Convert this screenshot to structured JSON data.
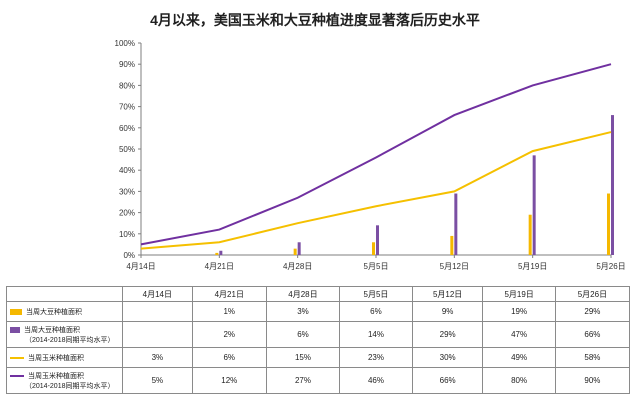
{
  "chart_data": {
    "type": "bar",
    "title": "4月以来，美国玉米和大豆种植进度显著落后历史水平",
    "categories": [
      "4月14日",
      "4月21日",
      "4月28日",
      "5月5日",
      "5月12日",
      "5月19日",
      "5月26日"
    ],
    "ylim": [
      0,
      100
    ],
    "yticks": [
      "0%",
      "10%",
      "20%",
      "30%",
      "40%",
      "50%",
      "60%",
      "70%",
      "80%",
      "90%",
      "100%"
    ],
    "series": [
      {
        "name": "当周大豆种植面积",
        "kind": "bar",
        "color": "#f5b800",
        "values": [
          null,
          1,
          3,
          6,
          9,
          19,
          29
        ],
        "labels": [
          "",
          "1%",
          "3%",
          "6%",
          "9%",
          "19%",
          "29%"
        ]
      },
      {
        "name": "当周大豆种植面积",
        "name_sub": "（2014-2018同期平均水平）",
        "kind": "bar",
        "color": "#7b4fa3",
        "values": [
          null,
          2,
          6,
          14,
          29,
          47,
          66
        ],
        "labels": [
          "",
          "2%",
          "6%",
          "14%",
          "29%",
          "47%",
          "66%"
        ]
      },
      {
        "name": "当周玉米种植面积",
        "kind": "line",
        "color": "#f5c000",
        "values": [
          3,
          6,
          15,
          23,
          30,
          49,
          58
        ],
        "labels": [
          "3%",
          "6%",
          "15%",
          "23%",
          "30%",
          "49%",
          "58%"
        ]
      },
      {
        "name": "当周玉米种植面积",
        "name_sub": "（2014-2018同期平均水平）",
        "kind": "line",
        "color": "#7030a0",
        "values": [
          5,
          12,
          27,
          46,
          66,
          80,
          90
        ],
        "labels": [
          "5%",
          "12%",
          "27%",
          "46%",
          "66%",
          "80%",
          "90%"
        ]
      }
    ]
  }
}
